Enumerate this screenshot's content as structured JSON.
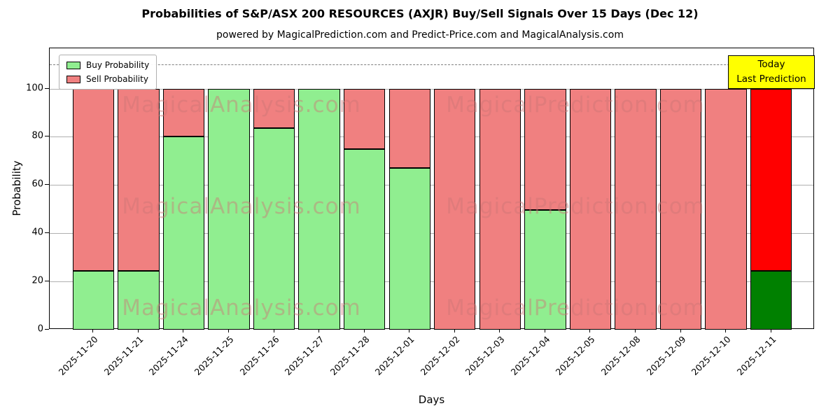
{
  "chart_data": {
    "type": "bar",
    "stacked": true,
    "title": "Probabilities of S&P/ASX 200 RESOURCES (AXJR) Buy/Sell Signals Over 15 Days (Dec 12)",
    "subtitle": "powered by MagicalPrediction.com and Predict-Price.com and MagicalAnalysis.com",
    "xlabel": "Days",
    "ylabel": "Probability",
    "ylim": [
      0,
      116.7
    ],
    "yticks": [
      0,
      20,
      40,
      60,
      80,
      100
    ],
    "grid": true,
    "dashed_line_y": 110,
    "legend_position": "upper left",
    "categories": [
      "2025-11-20",
      "2025-11-21",
      "2025-11-24",
      "2025-11-25",
      "2025-11-26",
      "2025-11-27",
      "2025-11-28",
      "2025-12-01",
      "2025-12-02",
      "2025-12-03",
      "2025-12-04",
      "2025-12-05",
      "2025-12-08",
      "2025-12-09",
      "2025-12-10",
      "2025-12-11"
    ],
    "series": [
      {
        "name": "Buy Probability",
        "color": "#90EE90",
        "values": [
          24.5,
          24.5,
          80,
          100,
          83.5,
          100,
          75,
          67,
          0,
          0,
          49.5,
          0,
          0,
          0,
          0,
          24.5
        ]
      },
      {
        "name": "Sell Probability",
        "color": "#F08080",
        "values": [
          75.5,
          75.5,
          20,
          0,
          16.5,
          0,
          25,
          33,
          100,
          100,
          50.5,
          100,
          100,
          100,
          100,
          75.5
        ]
      }
    ],
    "highlight_last_bar": {
      "buy_color": "#008000",
      "sell_color": "#FF0000"
    }
  },
  "legend": {
    "items": [
      {
        "label": "Buy Probability",
        "color": "#90EE90"
      },
      {
        "label": "Sell Probability",
        "color": "#F08080"
      }
    ]
  },
  "annotation": {
    "line1": "Today",
    "line2": "Last Prediction",
    "bg_color": "#FFFF00"
  },
  "watermarks": {
    "left": "MagicalAnalysis.com",
    "right": "MagicalPrediction.com"
  },
  "colors": {
    "bar_edge": "#000000",
    "grid": "#b0b0b0",
    "dashed_line": "#7f7f7f",
    "background": "#FFFFFF"
  }
}
